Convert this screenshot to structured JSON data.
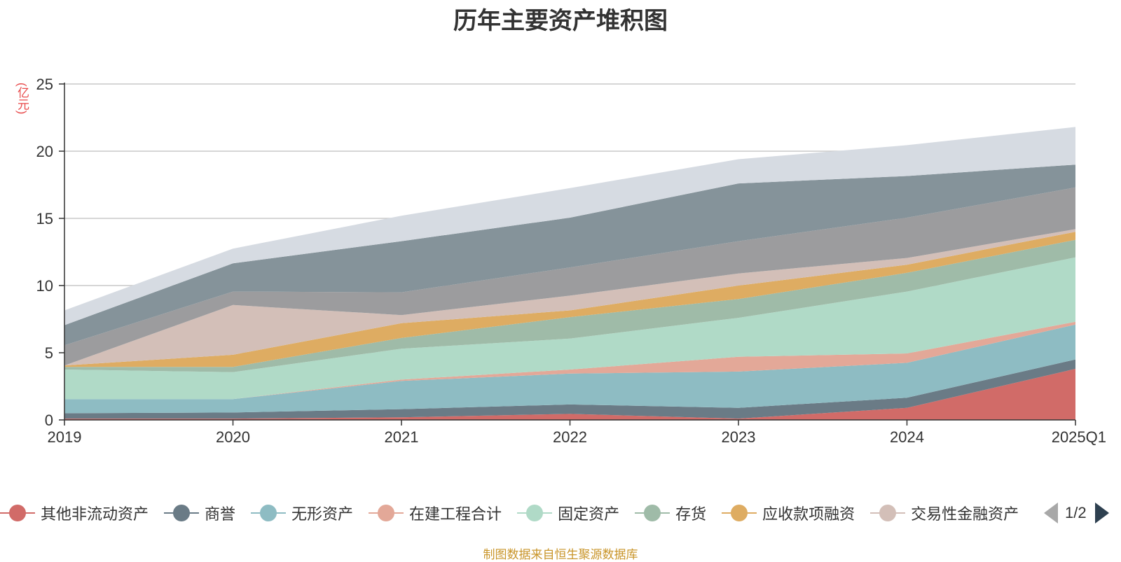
{
  "chart_data": {
    "type": "area",
    "stacked": true,
    "title": "历年主要资产堆积图",
    "ylabel": "(亿元)",
    "xlabel": "",
    "categories": [
      "2019",
      "2020",
      "2021",
      "2022",
      "2023",
      "2024",
      "2025Q1"
    ],
    "ylim": [
      0,
      25
    ],
    "yticks": [
      "0",
      "5",
      "10",
      "15",
      "20",
      "25"
    ],
    "grid": true,
    "series": [
      {
        "name": "其他非流动资产",
        "color": "#d16b68",
        "values": [
          0.1,
          0.1,
          0.2,
          0.45,
          0.1,
          0.9,
          3.8
        ]
      },
      {
        "name": "商誉",
        "color": "#6a7b86",
        "values": [
          0.4,
          0.45,
          0.6,
          0.7,
          0.8,
          0.75,
          0.7
        ]
      },
      {
        "name": "无形资产",
        "color": "#8ebcc3",
        "values": [
          1.05,
          1.0,
          2.1,
          2.3,
          2.7,
          2.6,
          2.6
        ]
      },
      {
        "name": "在建工程合计",
        "color": "#e3a898",
        "values": [
          0.0,
          0.0,
          0.1,
          0.3,
          1.1,
          0.7,
          0.2
        ]
      },
      {
        "name": "固定资产",
        "color": "#b0dac7",
        "values": [
          2.2,
          2.0,
          2.3,
          2.3,
          2.9,
          4.6,
          4.8
        ]
      },
      {
        "name": "存货",
        "color": "#9fbba8",
        "values": [
          0.2,
          0.4,
          0.8,
          1.6,
          1.4,
          1.4,
          1.3
        ]
      },
      {
        "name": "应收款项融资",
        "color": "#deac62",
        "values": [
          0.1,
          0.9,
          1.1,
          0.5,
          1.0,
          0.6,
          0.6
        ]
      },
      {
        "name": "交易性金融资产",
        "color": "#d3bfb8",
        "values": [
          0.0,
          3.7,
          0.6,
          1.1,
          0.9,
          0.5,
          0.2
        ]
      },
      {
        "name": "",
        "color": "#9c9c9e",
        "values": [
          1.5,
          1.0,
          1.7,
          2.1,
          2.4,
          3.0,
          3.1
        ]
      },
      {
        "name": "",
        "color": "#85939a",
        "values": [
          1.5,
          2.1,
          3.8,
          3.7,
          4.3,
          3.1,
          1.7
        ]
      },
      {
        "name": "",
        "color": "#d6dbe2",
        "values": [
          1.1,
          1.1,
          1.9,
          2.2,
          1.8,
          2.3,
          2.8
        ]
      }
    ],
    "legend": {
      "position": "bottom",
      "page": "1/2"
    },
    "source": "制图数据来自恒生聚源数据库"
  }
}
